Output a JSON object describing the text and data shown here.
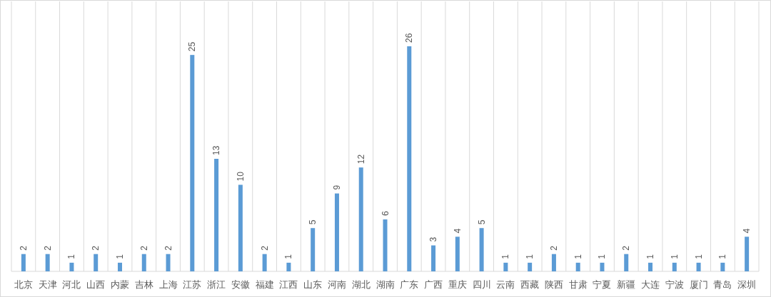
{
  "chart_data": {
    "type": "bar",
    "categories": [
      "北京",
      "天津",
      "河北",
      "山西",
      "内蒙",
      "吉林",
      "上海",
      "江苏",
      "浙江",
      "安徽",
      "福建",
      "江西",
      "山东",
      "河南",
      "湖北",
      "湖南",
      "广东",
      "广西",
      "重庆",
      "四川",
      "云南",
      "西藏",
      "陕西",
      "甘肃",
      "宁夏",
      "新疆",
      "大连",
      "宁波",
      "厦门",
      "青岛",
      "深圳"
    ],
    "values": [
      2,
      2,
      1,
      2,
      1,
      2,
      2,
      25,
      13,
      10,
      2,
      1,
      5,
      9,
      12,
      6,
      26,
      3,
      4,
      5,
      1,
      1,
      2,
      1,
      1,
      2,
      1,
      1,
      1,
      1,
      4
    ],
    "color": "#5b9bd5",
    "data_labels": true,
    "grid": "x"
  }
}
